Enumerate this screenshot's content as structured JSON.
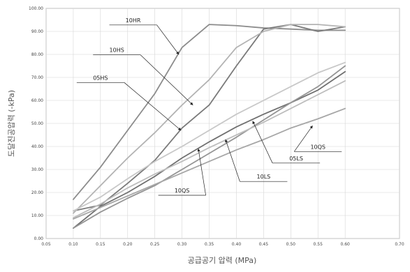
{
  "chart_data": {
    "type": "line",
    "xlabel": "공급공기 압력 (MPa)",
    "ylabel": "도달진공압력 (-kPa)",
    "xlim": [
      0.05,
      0.7
    ],
    "ylim": [
      0,
      100
    ],
    "x_ticks": [
      "0.05",
      "0.10",
      "0.15",
      "0.20",
      "0.25",
      "0.30",
      "0.35",
      "0.40",
      "0.45",
      "0.50",
      "0.55",
      "0.60",
      "0.70"
    ],
    "y_ticks": [
      "0.00",
      "10.00",
      "20.00",
      "30.00",
      "40.00",
      "50.00",
      "60.00",
      "70.00",
      "80.00",
      "90.00",
      "100.00"
    ],
    "grid": true,
    "x": [
      0.1,
      0.15,
      0.2,
      0.25,
      0.3,
      0.35,
      0.4,
      0.45,
      0.5,
      0.55,
      0.6
    ],
    "series": [
      {
        "name": "10HR",
        "color": "#8c8c8c",
        "values": [
          17,
          31,
          47,
          63,
          83,
          93,
          92.5,
          91.5,
          91,
          90.5,
          90.5
        ]
      },
      {
        "name": "10HS",
        "color": "#7a7a7a",
        "values": [
          12,
          14.5,
          24,
          34,
          48,
          58,
          75,
          91,
          93,
          90,
          92
        ]
      },
      {
        "name": "05HS",
        "color": "#b3b3b3",
        "values": [
          11,
          23,
          35,
          46,
          58,
          69,
          83,
          90,
          93,
          93,
          92
        ]
      },
      {
        "name": "05LS",
        "color": "#707070",
        "values": [
          4.5,
          14,
          20,
          27,
          35,
          42,
          48.5,
          54,
          59,
          64.5,
          72.5
        ]
      },
      {
        "name": "10LS",
        "color": "#959595",
        "values": [
          4.5,
          11.5,
          17.5,
          23,
          30,
          37,
          44,
          51.5,
          59,
          66,
          75
        ]
      },
      {
        "name": "10QS",
        "color": "#bdbdbd",
        "values": [
          9,
          15,
          22,
          28,
          33.5,
          39.5,
          45,
          50.5,
          56.5,
          62.5,
          68.5
        ]
      },
      {
        "name": "10QS",
        "color": "#a6a6a6",
        "values": [
          8.5,
          13.5,
          18.5,
          23.5,
          28.5,
          33.5,
          38.5,
          43,
          48,
          52,
          56.5
        ]
      },
      {
        "name": "",
        "color": "#c8c8c8",
        "values": [
          12,
          18,
          26,
          33.5,
          40,
          47,
          54,
          60,
          66,
          72,
          76.5
        ]
      }
    ],
    "annotations": [
      {
        "label": "10HR",
        "label_at": [
          0.21,
          94
        ],
        "arrow_to": [
          0.294,
          80
        ]
      },
      {
        "label": "10HS",
        "label_at": [
          0.18,
          81
        ],
        "arrow_to": [
          0.32,
          58
        ]
      },
      {
        "label": "05HS",
        "label_at": [
          0.15,
          69
        ],
        "arrow_to": [
          0.298,
          47
        ]
      },
      {
        "label": "05LS",
        "label_at": [
          0.51,
          34
        ],
        "arrow_to": [
          0.43,
          51
        ]
      },
      {
        "label": "10LS",
        "label_at": [
          0.45,
          26
        ],
        "arrow_to": [
          0.38,
          43
        ]
      },
      {
        "label": "10QS",
        "label_at": [
          0.3,
          20
        ],
        "arrow_to": [
          0.33,
          39
        ]
      },
      {
        "label": "10QS",
        "label_at": [
          0.55,
          39
        ],
        "arrow_to": [
          0.54,
          49
        ]
      }
    ]
  }
}
